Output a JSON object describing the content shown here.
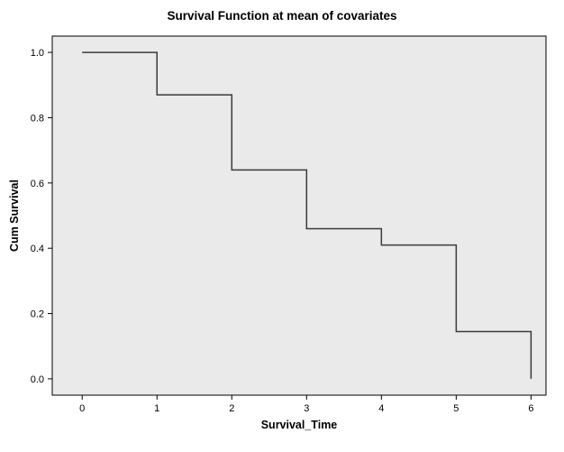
{
  "chart_data": {
    "type": "line",
    "subtype": "step",
    "title": "Survival Function at mean of covariates",
    "xlabel": "Survival_Time",
    "ylabel": "Cum Survival",
    "xlim": [
      -0.4,
      6.2
    ],
    "ylim": [
      -0.05,
      1.05
    ],
    "x_ticks": [
      0,
      1,
      2,
      3,
      4,
      5,
      6
    ],
    "y_ticks": [
      "0.0",
      "0.2",
      "0.4",
      "0.6",
      "0.8",
      "1.0"
    ],
    "grid": false,
    "legend": false,
    "line_color": "#3a3a3a",
    "plot_bg": "#eaeaea",
    "frame_color": "#000000",
    "steps": {
      "time": [
        0,
        1,
        2,
        3,
        4,
        5,
        6
      ],
      "cum_survival": [
        1.0,
        0.87,
        0.64,
        0.46,
        0.41,
        0.145,
        0.0
      ]
    },
    "points": [
      {
        "x": 0,
        "y": 1.0
      },
      {
        "x": 1,
        "y": 1.0
      },
      {
        "x": 1,
        "y": 0.87
      },
      {
        "x": 2,
        "y": 0.87
      },
      {
        "x": 2,
        "y": 0.64
      },
      {
        "x": 3,
        "y": 0.64
      },
      {
        "x": 3,
        "y": 0.46
      },
      {
        "x": 4,
        "y": 0.46
      },
      {
        "x": 4,
        "y": 0.41
      },
      {
        "x": 5,
        "y": 0.41
      },
      {
        "x": 5,
        "y": 0.145
      },
      {
        "x": 6,
        "y": 0.145
      },
      {
        "x": 6,
        "y": 0.0
      }
    ]
  }
}
